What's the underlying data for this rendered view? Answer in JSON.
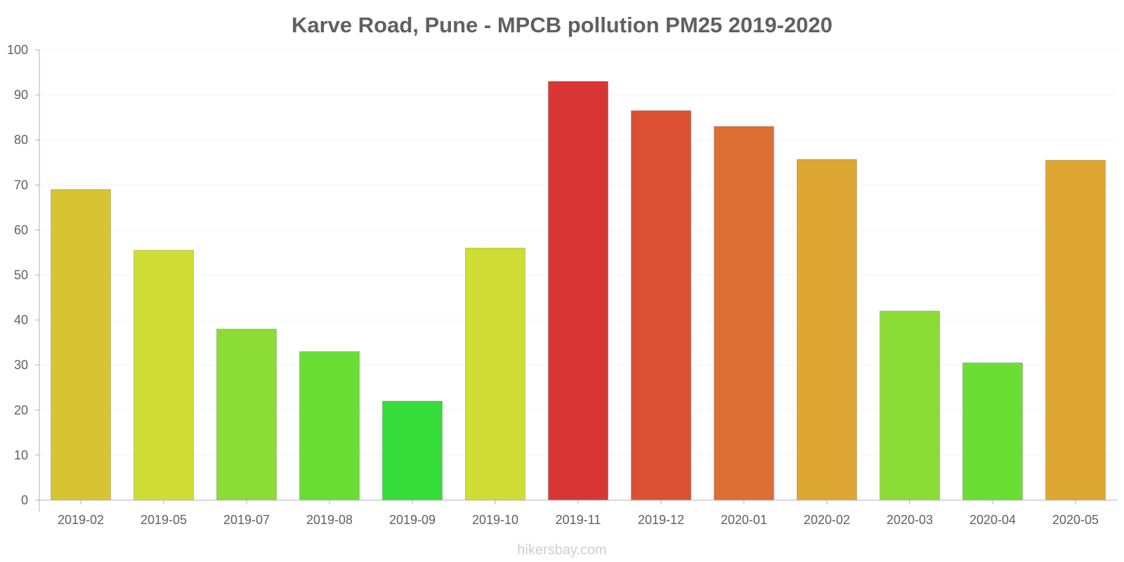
{
  "chart_data": {
    "type": "bar",
    "title": "Karve Road, Pune - MPCB pollution PM25 2019-2020",
    "xlabel": "",
    "ylabel": "",
    "ylim": [
      0,
      100
    ],
    "yticks": [
      0,
      10,
      20,
      30,
      40,
      50,
      60,
      70,
      80,
      90,
      100
    ],
    "categories": [
      "2019-02",
      "2019-05",
      "2019-07",
      "2019-08",
      "2019-09",
      "2019-10",
      "2019-11",
      "2019-12",
      "2020-01",
      "2020-02",
      "2020-03",
      "2020-04",
      "2020-05"
    ],
    "values": [
      69,
      55.5,
      38,
      33,
      22,
      56,
      93,
      86.5,
      83,
      75.7,
      42,
      30.5,
      75.5
    ],
    "colors": [
      "#d7c433",
      "#cfdd35",
      "#8bdc34",
      "#6ade35",
      "#36dc39",
      "#cfdd35",
      "#d93535",
      "#db5033",
      "#dd6e34",
      "#dea734",
      "#8bdc34",
      "#6ade35",
      "#dea734"
    ],
    "grid": true,
    "legend": "none"
  },
  "watermark": "hikersbay.com",
  "colors": {
    "axis": "#b0b0b0",
    "grid": "#f3f3f3",
    "text": "#606060"
  }
}
